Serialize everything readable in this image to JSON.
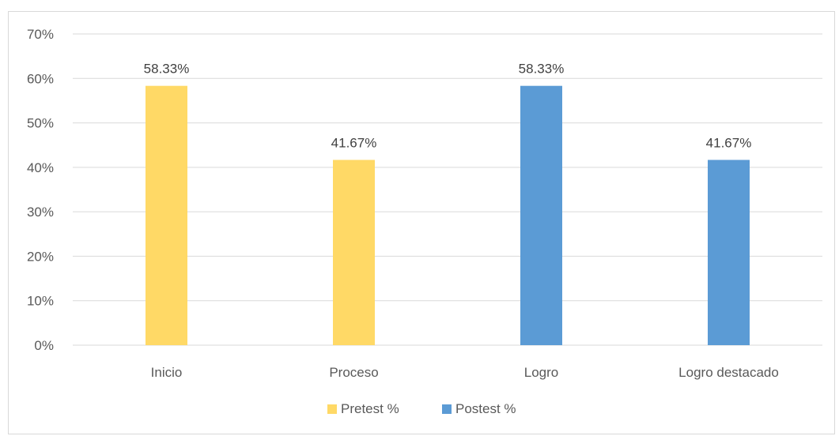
{
  "chart_data": {
    "type": "bar",
    "categories": [
      "Inicio",
      "Proceso",
      "Logro",
      "Logro destacado"
    ],
    "series": [
      {
        "name": "Pretest %",
        "color": "#ffd966",
        "values": [
          58.33,
          41.67,
          null,
          null
        ],
        "labels": [
          "58.33%",
          "41.67%",
          "",
          ""
        ]
      },
      {
        "name": "Postest %",
        "color": "#5b9bd5",
        "values": [
          null,
          null,
          58.33,
          41.67
        ],
        "labels": [
          "",
          "",
          "58.33%",
          "41.67%"
        ]
      }
    ],
    "ylim": [
      0,
      70
    ],
    "yticks": [
      0,
      10,
      20,
      30,
      40,
      50,
      60,
      70
    ],
    "ytick_labels": [
      "0%",
      "10%",
      "20%",
      "30%",
      "40%",
      "50%",
      "60%",
      "70%"
    ],
    "grid": true,
    "legend_position": "bottom",
    "title": "",
    "xlabel": "",
    "ylabel": ""
  }
}
